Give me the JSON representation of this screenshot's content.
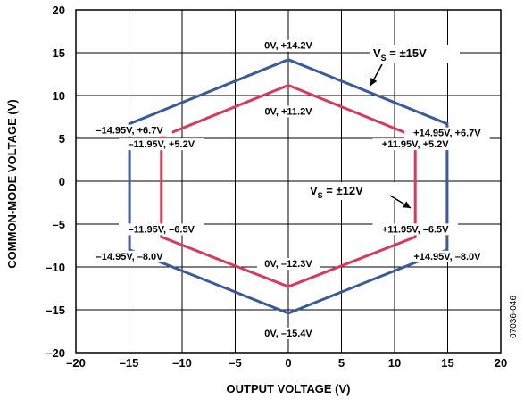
{
  "chart_data": {
    "type": "line",
    "xlabel": "OUTPUT VOLTAGE (V)",
    "ylabel": "COMMON-MODE VOLTAGE (V)",
    "xlim": [
      -20,
      20
    ],
    "ylim": [
      -20,
      20
    ],
    "x_ticks": [
      -20,
      -15,
      -10,
      -5,
      0,
      5,
      10,
      15,
      20
    ],
    "y_ticks": [
      -20,
      -15,
      -10,
      -5,
      0,
      5,
      10,
      15,
      20
    ],
    "x_tick_labels": [
      "–20",
      "–15",
      "–10",
      "–5",
      "0",
      "5",
      "10",
      "15",
      "20"
    ],
    "y_tick_labels": [
      "–20",
      "–15",
      "–10",
      "–5",
      "0",
      "5",
      "10",
      "15",
      "20"
    ],
    "grid": true,
    "figure_id": "07036-046",
    "series": [
      {
        "name": "±15V",
        "label_prefix": "V",
        "label_sub": "S",
        "label_rest": " = ±15V",
        "color": "#3a5a9a",
        "points": [
          [
            0,
            14.2
          ],
          [
            14.95,
            6.7
          ],
          [
            14.95,
            -8.0
          ],
          [
            0,
            -15.4
          ],
          [
            -14.95,
            -8.0
          ],
          [
            -14.95,
            6.7
          ]
        ],
        "point_labels": [
          "0V, +14.2V",
          "+14.95V, +6.7V",
          "+14.95V, –8.0V",
          "0V, –15.4V",
          "–14.95V, –8.0V",
          "–14.95V, +6.7V"
        ]
      },
      {
        "name": "±12V",
        "label_prefix": "V",
        "label_sub": "S",
        "label_rest": " = ±12V",
        "color": "#d93a5c",
        "points": [
          [
            0,
            11.2
          ],
          [
            11.95,
            5.2
          ],
          [
            11.95,
            -6.5
          ],
          [
            0,
            -12.3
          ],
          [
            -11.95,
            -6.5
          ],
          [
            -11.95,
            5.2
          ]
        ],
        "point_labels": [
          "0V, +11.2V",
          "+11.95V, +5.2V",
          "+11.95V, –6.5V",
          "0V, –12.3V",
          "–11.95V, –6.5V",
          "–11.95V, +5.2V"
        ]
      }
    ]
  }
}
